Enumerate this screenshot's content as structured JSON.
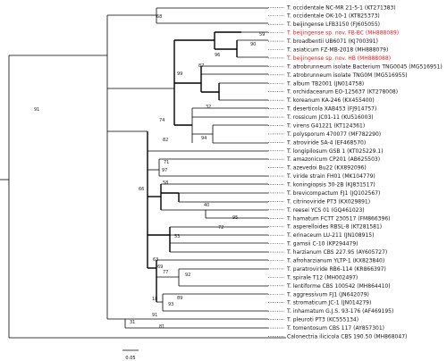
{
  "colors": {
    "line": "#000000",
    "highlight": "#e8191f",
    "text": "#111111",
    "dots": "#000000"
  },
  "taxa": [
    {
      "label": "T. occidentale NC-MR 21-5-1 (KT271383)",
      "highlight": false
    },
    {
      "label": "T. occidentale OK-10-1 (KT825373)",
      "highlight": false
    },
    {
      "label": "T. beijingense LFB3150 (FJ605055)",
      "highlight": false
    },
    {
      "label": "T. beijingense sp. nov. FB-BC (MH888089)",
      "highlight": true
    },
    {
      "label": "T. broadbentii UB6071 (KJ700391)",
      "highlight": false
    },
    {
      "label": "T. asiaticum FZ-MB-2018 (MH888079)",
      "highlight": false
    },
    {
      "label": "T. beijingense sp. nov. HB (MH888088)",
      "highlight": true
    },
    {
      "label": "T. atrobrunneum isolate Bacterium TNG0045 (MG516951)",
      "highlight": false
    },
    {
      "label": "T. atrobrunneum isolate TNG0M (MG516955)",
      "highlight": false
    },
    {
      "label": "T. album TB2001 (JN014758)",
      "highlight": false
    },
    {
      "label": "T. orchidacearum EO-125637 (KT278008)",
      "highlight": false
    },
    {
      "label": "T. koreanum KA-246 (KX455400)",
      "highlight": false
    },
    {
      "label": "T. deserticola XAB453 (FJ914757)",
      "highlight": false
    },
    {
      "label": "T. rossicum JC01-11 (KU516003)",
      "highlight": false
    },
    {
      "label": "T. virens G41221 (KT124361)",
      "highlight": false
    },
    {
      "label": "T. polysporum 470077 (MF782290)",
      "highlight": false
    },
    {
      "label": "T. atroviride SA-4 (EF468570)",
      "highlight": false
    },
    {
      "label": "T. longipilosum GSB 1 (KT025229.1)",
      "highlight": false
    },
    {
      "label": "T. amazonicum CP201 (AB625503)",
      "highlight": false
    },
    {
      "label": "T. azevedoi Bu22 (KX892096)",
      "highlight": false
    },
    {
      "label": "T. viride strain FH01 (MK104779)",
      "highlight": false
    },
    {
      "label": "T. koningiopsis 30-2B (KJ831517)",
      "highlight": false
    },
    {
      "label": "T. brevicompactum FJ1 (JQ102567)",
      "highlight": false
    },
    {
      "label": "T. citrinoviride PT3 (KX029891)",
      "highlight": false
    },
    {
      "label": "T. reesei YCS 01 (GQ461023)",
      "highlight": false
    },
    {
      "label": "T. hamatum FCTT 230517 (FM866396)",
      "highlight": false
    },
    {
      "label": "T. asperelloides RBSL-8 (KT281581)",
      "highlight": false
    },
    {
      "label": "T. erinaceum LU-211 (JN108915)",
      "highlight": false
    },
    {
      "label": "T. gamsii C-10 (KP294479)",
      "highlight": false
    },
    {
      "label": "T. harzianum CBS 227.95 (AY605727)",
      "highlight": false
    },
    {
      "label": "T. afroharzianum YLTP-1 (KX823840)",
      "highlight": false
    },
    {
      "label": "T. paratroviride RB6-114 (KR866397)",
      "highlight": false
    },
    {
      "label": "T. spirale T12 (MH002497)",
      "highlight": false
    },
    {
      "label": "T. lentiforme CBS 100542 (MH864410)",
      "highlight": false
    },
    {
      "label": "T. aggressivum FJ1 (JN642079)",
      "highlight": false
    },
    {
      "label": "T. stromaticum JC-1 (JN014279)",
      "highlight": false
    },
    {
      "label": "T. inhamatum G.J.S. 93-176 (AF469195)",
      "highlight": false
    },
    {
      "label": "T. pleuroti PT3 (KC555134)",
      "highlight": false
    },
    {
      "label": "T. tomentosum CBS 117 (AY857301)",
      "highlight": false
    },
    {
      "label": "Calonectria ilicicola CBS 190.50 (MH868047)",
      "highlight": false
    }
  ],
  "supports": [
    {
      "value": "68"
    },
    {
      "value": "59"
    },
    {
      "value": "90"
    },
    {
      "value": "96"
    },
    {
      "value": "87"
    },
    {
      "value": "99"
    },
    {
      "value": "32"
    },
    {
      "value": "74"
    },
    {
      "value": "91"
    },
    {
      "value": "94"
    },
    {
      "value": "82"
    },
    {
      "value": "66"
    },
    {
      "value": "71"
    },
    {
      "value": "97"
    },
    {
      "value": "58"
    },
    {
      "value": "40"
    },
    {
      "value": "95"
    },
    {
      "value": "72"
    },
    {
      "value": "53"
    },
    {
      "value": "63"
    },
    {
      "value": "69"
    },
    {
      "value": "92"
    },
    {
      "value": "77"
    },
    {
      "value": "89"
    },
    {
      "value": "93"
    },
    {
      "value": "18"
    },
    {
      "value": "91"
    },
    {
      "value": "81"
    },
    {
      "value": "31"
    }
  ],
  "scale_bar": {
    "label": "0.05"
  }
}
